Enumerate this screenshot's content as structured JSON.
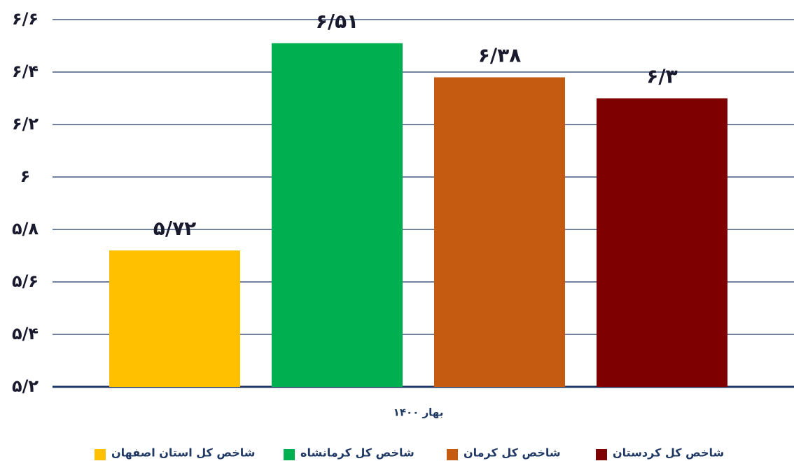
{
  "chart_data": {
    "type": "bar",
    "categories": [
      "بهار ۱۴۰۰"
    ],
    "series": [
      {
        "name": "شاخص کل استان اصفهان",
        "color": "#ffc000",
        "values": [
          5.72
        ],
        "value_labels": [
          "۵/۷۲"
        ]
      },
      {
        "name": "شاخص کل کرمانشاه",
        "color": "#00b050",
        "values": [
          6.51
        ],
        "value_labels": [
          "۶/۵۱"
        ]
      },
      {
        "name": "شاخص کل کرمان",
        "color": "#c55a11",
        "values": [
          6.38
        ],
        "value_labels": [
          "۶/۳۸"
        ]
      },
      {
        "name": "شاخص کل کردستان",
        "color": "#7f0000",
        "values": [
          6.3
        ],
        "value_labels": [
          "۶/۳"
        ]
      }
    ],
    "ylim": [
      5.2,
      6.6
    ],
    "yticks": [
      {
        "value": 5.2,
        "label": "۵/۲"
      },
      {
        "value": 5.4,
        "label": "۵/۴"
      },
      {
        "value": 5.6,
        "label": "۵/۶"
      },
      {
        "value": 5.8,
        "label": "۵/۸"
      },
      {
        "value": 6,
        "label": "۶"
      },
      {
        "value": 6.2,
        "label": "۶/۲"
      },
      {
        "value": 6.4,
        "label": "۶/۴"
      },
      {
        "value": 6.6,
        "label": "۶/۶"
      }
    ],
    "grid": true,
    "legend": "bottom"
  }
}
